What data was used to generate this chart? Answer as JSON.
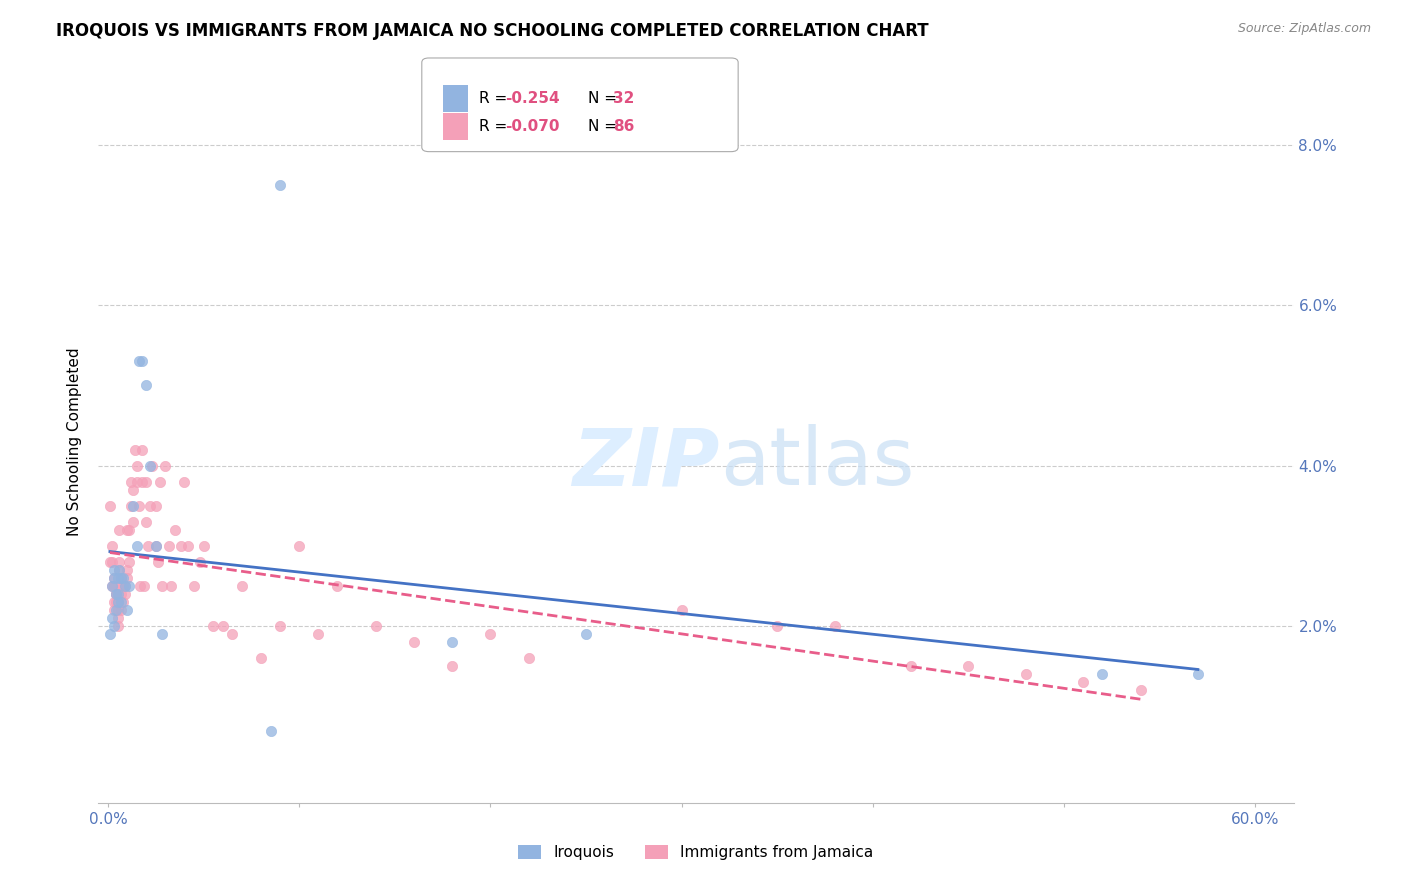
{
  "title": "IROQUOIS VS IMMIGRANTS FROM JAMAICA NO SCHOOLING COMPLETED CORRELATION CHART",
  "source": "Source: ZipAtlas.com",
  "ylabel": "No Schooling Completed",
  "xlim": [
    -0.005,
    0.62
  ],
  "ylim": [
    -0.002,
    0.088
  ],
  "xticks": [
    0.0,
    0.1,
    0.2,
    0.3,
    0.4,
    0.5,
    0.6
  ],
  "yticks": [
    0.0,
    0.02,
    0.04,
    0.06,
    0.08
  ],
  "ytick_labels": [
    "",
    "2.0%",
    "4.0%",
    "6.0%",
    "8.0%"
  ],
  "xtick_labels": [
    "0.0%",
    "",
    "",
    "",
    "",
    "",
    "60.0%"
  ],
  "legend_r_iroquois": "R = -0.254",
  "legend_n_iroquois": "N = 32",
  "legend_r_jamaica": "R = -0.070",
  "legend_n_jamaica": "N = 86",
  "iroquois_color": "#92b4e0",
  "jamaica_color": "#f4a0b8",
  "trendline_iroquois_color": "#4472c4",
  "trendline_jamaica_color": "#e85d8a",
  "watermark_color": "#ddeeff",
  "iroquois_x": [
    0.001,
    0.002,
    0.003,
    0.003,
    0.004,
    0.004,
    0.005,
    0.005,
    0.006,
    0.007,
    0.008,
    0.009,
    0.01,
    0.011,
    0.013,
    0.015,
    0.016,
    0.018,
    0.02,
    0.022,
    0.025,
    0.028,
    0.085,
    0.09,
    0.18,
    0.25,
    0.52,
    0.57,
    0.002,
    0.003,
    0.005,
    0.007
  ],
  "iroquois_y": [
    0.019,
    0.021,
    0.027,
    0.02,
    0.024,
    0.022,
    0.026,
    0.024,
    0.027,
    0.026,
    0.026,
    0.025,
    0.022,
    0.025,
    0.035,
    0.03,
    0.053,
    0.053,
    0.05,
    0.04,
    0.03,
    0.019,
    0.007,
    0.075,
    0.018,
    0.019,
    0.014,
    0.014,
    0.025,
    0.026,
    0.023,
    0.023
  ],
  "jamaica_x": [
    0.001,
    0.001,
    0.002,
    0.002,
    0.002,
    0.003,
    0.003,
    0.003,
    0.003,
    0.004,
    0.004,
    0.004,
    0.005,
    0.005,
    0.005,
    0.005,
    0.006,
    0.006,
    0.006,
    0.007,
    0.007,
    0.007,
    0.007,
    0.008,
    0.008,
    0.009,
    0.009,
    0.01,
    0.01,
    0.01,
    0.011,
    0.011,
    0.012,
    0.012,
    0.013,
    0.013,
    0.014,
    0.015,
    0.015,
    0.016,
    0.017,
    0.018,
    0.018,
    0.019,
    0.02,
    0.02,
    0.021,
    0.022,
    0.023,
    0.025,
    0.025,
    0.026,
    0.027,
    0.028,
    0.03,
    0.032,
    0.033,
    0.035,
    0.038,
    0.04,
    0.042,
    0.045,
    0.048,
    0.05,
    0.055,
    0.06,
    0.065,
    0.07,
    0.08,
    0.09,
    0.1,
    0.11,
    0.12,
    0.14,
    0.16,
    0.18,
    0.2,
    0.22,
    0.3,
    0.35,
    0.38,
    0.42,
    0.45,
    0.48,
    0.51,
    0.54
  ],
  "jamaica_y": [
    0.035,
    0.028,
    0.03,
    0.028,
    0.025,
    0.023,
    0.022,
    0.025,
    0.026,
    0.024,
    0.023,
    0.024,
    0.023,
    0.022,
    0.021,
    0.02,
    0.032,
    0.028,
    0.027,
    0.026,
    0.025,
    0.024,
    0.022,
    0.025,
    0.023,
    0.025,
    0.024,
    0.032,
    0.027,
    0.026,
    0.032,
    0.028,
    0.035,
    0.038,
    0.037,
    0.033,
    0.042,
    0.04,
    0.038,
    0.035,
    0.025,
    0.042,
    0.038,
    0.025,
    0.038,
    0.033,
    0.03,
    0.035,
    0.04,
    0.035,
    0.03,
    0.028,
    0.038,
    0.025,
    0.04,
    0.03,
    0.025,
    0.032,
    0.03,
    0.038,
    0.03,
    0.025,
    0.028,
    0.03,
    0.02,
    0.02,
    0.019,
    0.025,
    0.016,
    0.02,
    0.03,
    0.019,
    0.025,
    0.02,
    0.018,
    0.015,
    0.019,
    0.016,
    0.022,
    0.02,
    0.02,
    0.015,
    0.015,
    0.014,
    0.013,
    0.012
  ]
}
